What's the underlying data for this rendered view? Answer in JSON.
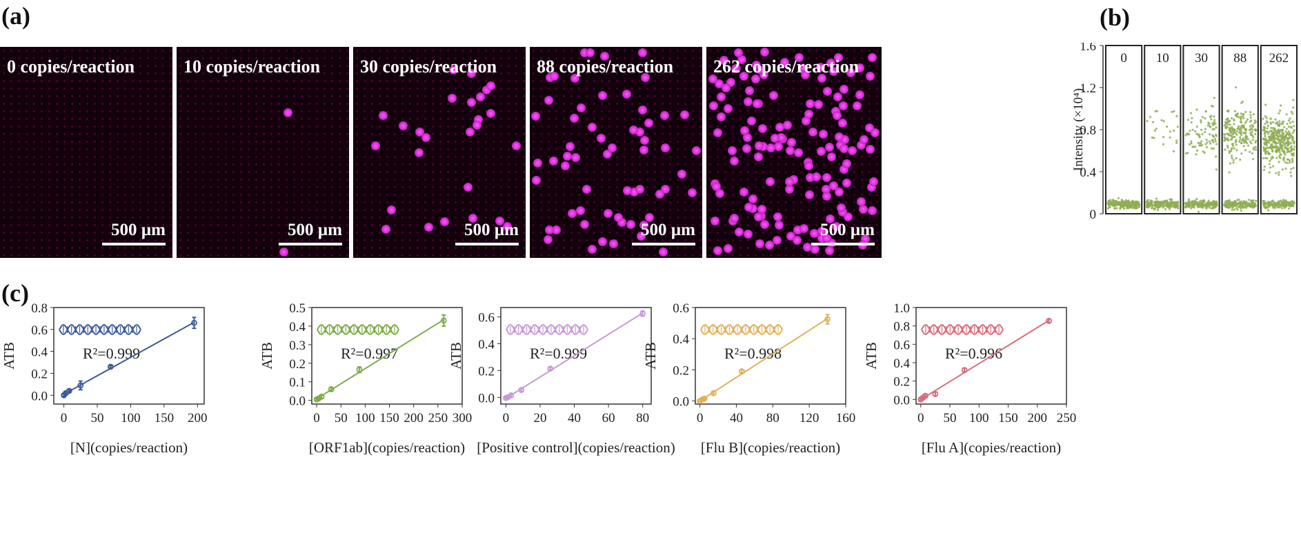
{
  "panels": {
    "a": "(a)",
    "b": "(b)",
    "c": "(c)"
  },
  "micrographs": [
    {
      "label": "0 copies/reaction",
      "scale": "500 µm",
      "dots": 0
    },
    {
      "label": "10 copies/reaction",
      "scale": "500 µm",
      "dots": 2
    },
    {
      "label": "30 copies/reaction",
      "scale": "500 µm",
      "dots": 26
    },
    {
      "label": "88 copies/reaction",
      "scale": "500 µm",
      "dots": 60
    },
    {
      "label": "262 copies/reaction",
      "scale": "500 µm",
      "dots": 150
    }
  ],
  "chart_data": [
    {
      "type": "scatter",
      "id": "b",
      "ylabel": "Intensity (×10⁴)",
      "ylim": [
        0,
        1.6
      ],
      "yticks": [
        "0",
        "0.4",
        "0.8",
        "1.2",
        "1.6"
      ],
      "color": "#8fae55",
      "groups": [
        {
          "name": "0",
          "positive_fraction": 0.0,
          "positive_center": 0.0
        },
        {
          "name": "10",
          "positive_fraction": 0.04,
          "positive_center": 0.85
        },
        {
          "name": "30",
          "positive_fraction": 0.15,
          "positive_center": 0.77
        },
        {
          "name": "88",
          "positive_fraction": 0.35,
          "positive_center": 0.78
        },
        {
          "name": "262",
          "positive_fraction": 0.6,
          "positive_center": 0.68
        }
      ],
      "negative_level": 0.09
    },
    {
      "type": "line",
      "id": "c1",
      "xlabel": "[N](copies/reaction)",
      "ylabel": "ATB",
      "xlim": [
        -15,
        210
      ],
      "ylim": [
        -0.08,
        0.8
      ],
      "xticks": [
        0,
        50,
        100,
        150,
        200
      ],
      "yticks": [
        0.0,
        0.2,
        0.4,
        0.6,
        0.8
      ],
      "r2": "R²=0.999",
      "color": "#3d5a98",
      "x": [
        0,
        3,
        8,
        25,
        70,
        195
      ],
      "y": [
        0.0,
        0.02,
        0.04,
        0.09,
        0.26,
        0.66
      ],
      "err": [
        0.01,
        0.01,
        0.01,
        0.04,
        0.01,
        0.05
      ]
    },
    {
      "type": "line",
      "id": "c2",
      "xlabel": "[ORF1ab](copies/reaction)",
      "ylabel": "ATB",
      "xlim": [
        -10,
        300
      ],
      "ylim": [
        -0.02,
        0.5
      ],
      "xticks": [
        0,
        50,
        100,
        150,
        200,
        250,
        300
      ],
      "yticks": [
        0.0,
        0.1,
        0.2,
        0.3,
        0.4,
        0.5
      ],
      "r2": "R²=0.997",
      "color": "#7faa4a",
      "x": [
        0,
        4,
        10,
        30,
        88,
        262
      ],
      "y": [
        0.005,
        0.01,
        0.02,
        0.06,
        0.165,
        0.43
      ],
      "err": [
        0.005,
        0.005,
        0.01,
        0.01,
        0.015,
        0.03
      ]
    },
    {
      "type": "line",
      "id": "c3",
      "xlabel": "[Positive control](copies/reaction)",
      "ylabel": "ATB",
      "xlim": [
        -3,
        85
      ],
      "ylim": [
        -0.05,
        0.67
      ],
      "xticks": [
        0,
        20,
        40,
        60,
        80
      ],
      "yticks": [
        0.0,
        0.2,
        0.4,
        0.6
      ],
      "r2": "R²=0.999",
      "color": "#c79ad6",
      "x": [
        0,
        1,
        3,
        9,
        26,
        80
      ],
      "y": [
        -0.005,
        0.0,
        0.015,
        0.055,
        0.215,
        0.625
      ],
      "err": [
        0.005,
        0.005,
        0.01,
        0.01,
        0.01,
        0.02
      ]
    },
    {
      "type": "line",
      "id": "c4",
      "xlabel": "[Flu B](copies/reaction)",
      "ylabel": "ATB",
      "xlim": [
        -5,
        160
      ],
      "ylim": [
        -0.02,
        0.6
      ],
      "xticks": [
        0,
        40,
        80,
        120,
        160
      ],
      "yticks": [
        0.0,
        0.2,
        0.4,
        0.6
      ],
      "r2": "R²=0.998",
      "color": "#e1b05a",
      "x": [
        0,
        3,
        5,
        15,
        46,
        140
      ],
      "y": [
        0.0,
        0.01,
        0.015,
        0.05,
        0.19,
        0.525
      ],
      "err": [
        0.005,
        0.005,
        0.005,
        0.01,
        0.01,
        0.03
      ]
    },
    {
      "type": "line",
      "id": "c5",
      "xlabel": "[Flu A](copies/reaction)",
      "ylabel": "ATB",
      "xlim": [
        -8,
        250
      ],
      "ylim": [
        -0.05,
        1.0
      ],
      "xticks": [
        0,
        50,
        100,
        150,
        200,
        250
      ],
      "yticks": [
        0.0,
        0.2,
        0.4,
        0.6,
        0.8,
        1.0
      ],
      "r2": "R²=0.996",
      "color": "#d86c7a",
      "x": [
        0,
        4,
        8,
        25,
        75,
        220
      ],
      "y": [
        0.0,
        0.02,
        0.04,
        0.06,
        0.32,
        0.855
      ],
      "err": [
        0.01,
        0.01,
        0.02,
        0.02,
        0.02,
        0.02
      ]
    }
  ]
}
